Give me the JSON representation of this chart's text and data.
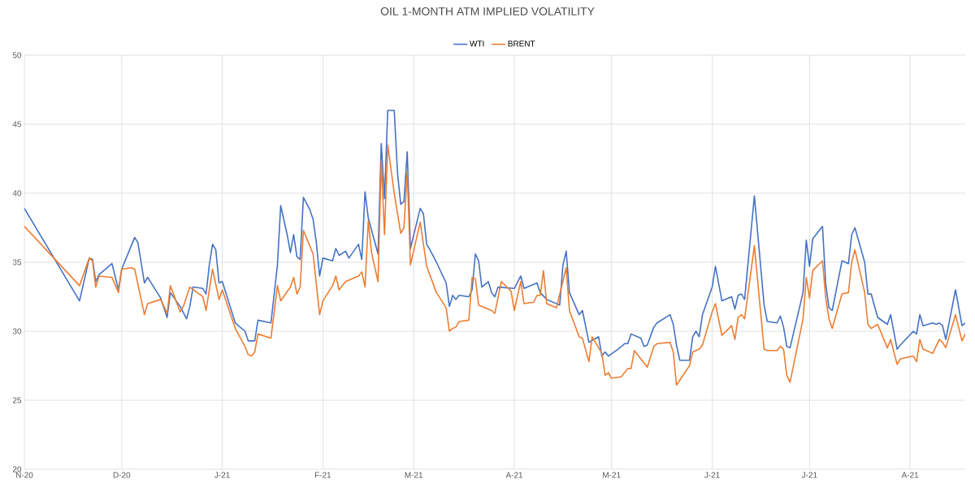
{
  "chart_data": {
    "type": "line",
    "title": "OIL 1-MONTH ATM IMPLIED VOLATILITY",
    "xlim": [
      "2020-11-01",
      "2021-08-18"
    ],
    "ylim": [
      20,
      50
    ],
    "yticks": [
      20,
      25,
      30,
      35,
      40,
      45,
      50
    ],
    "xticks": [
      {
        "value": "2020-11-01",
        "label": "N-20"
      },
      {
        "value": "2020-12-01",
        "label": "D-20"
      },
      {
        "value": "2021-01-01",
        "label": "J-21"
      },
      {
        "value": "2021-02-01",
        "label": "F-21"
      },
      {
        "value": "2021-03-01",
        "label": "M-21"
      },
      {
        "value": "2021-04-01",
        "label": "A-21"
      },
      {
        "value": "2021-05-01",
        "label": "M-21"
      },
      {
        "value": "2021-06-01",
        "label": "J-21"
      },
      {
        "value": "2021-07-01",
        "label": "J-21"
      },
      {
        "value": "2021-08-01",
        "label": "A-21"
      }
    ],
    "grid": true,
    "legend": "top",
    "marker": "none",
    "line_style": "solid",
    "series": [
      {
        "name": "WTI",
        "color": "#4472c4",
        "x": [
          "2020-11-01",
          "2020-11-18",
          "2020-11-21",
          "2020-11-22",
          "2020-11-23",
          "2020-11-24",
          "2020-11-28",
          "2020-11-30",
          "2020-12-01",
          "2020-12-05",
          "2020-12-06",
          "2020-12-08",
          "2020-12-09",
          "2020-12-13",
          "2020-12-15",
          "2020-12-16",
          "2020-12-19",
          "2020-12-21",
          "2020-12-22",
          "2020-12-23",
          "2020-12-26",
          "2020-12-27",
          "2020-12-28",
          "2020-12-29",
          "2020-12-30",
          "2020-12-31",
          "2021-01-01",
          "2021-01-05",
          "2021-01-08",
          "2021-01-09",
          "2021-01-11",
          "2021-01-12",
          "2021-01-16",
          "2021-01-18",
          "2021-01-19",
          "2021-01-21",
          "2021-01-22",
          "2021-01-23",
          "2021-01-24",
          "2021-01-25",
          "2021-01-26",
          "2021-01-28",
          "2021-01-29",
          "2021-01-30",
          "2021-01-31",
          "2021-02-01",
          "2021-02-04",
          "2021-02-05",
          "2021-02-06",
          "2021-02-08",
          "2021-02-09",
          "2021-02-12",
          "2021-02-13",
          "2021-02-14",
          "2021-02-15",
          "2021-02-18",
          "2021-02-19",
          "2021-02-20",
          "2021-02-21",
          "2021-02-23",
          "2021-02-24",
          "2021-02-25",
          "2021-02-26",
          "2021-02-27",
          "2021-02-28",
          "2021-03-03",
          "2021-03-04",
          "2021-03-05",
          "2021-03-06",
          "2021-03-08",
          "2021-03-11",
          "2021-03-12",
          "2021-03-13",
          "2021-03-14",
          "2021-03-15",
          "2021-03-18",
          "2021-03-19",
          "2021-03-20",
          "2021-03-21",
          "2021-03-22",
          "2021-03-24",
          "2021-03-25",
          "2021-03-26",
          "2021-03-27",
          "2021-04-01",
          "2021-04-03",
          "2021-04-04",
          "2021-04-08",
          "2021-04-09",
          "2021-04-11",
          "2021-04-15",
          "2021-04-16",
          "2021-04-17",
          "2021-04-18",
          "2021-04-21",
          "2021-04-22",
          "2021-04-24",
          "2021-04-27",
          "2021-04-28",
          "2021-04-29",
          "2021-04-30",
          "2021-05-03",
          "2021-05-05",
          "2021-05-06",
          "2021-05-07",
          "2021-05-10",
          "2021-05-11",
          "2021-05-12",
          "2021-05-14",
          "2021-05-15",
          "2021-05-19",
          "2021-05-20",
          "2021-05-21",
          "2021-05-22",
          "2021-05-25",
          "2021-05-26",
          "2021-05-27",
          "2021-05-28",
          "2021-05-29",
          "2021-06-01",
          "2021-06-02",
          "2021-06-04",
          "2021-06-07",
          "2021-06-08",
          "2021-06-09",
          "2021-06-10",
          "2021-06-11",
          "2021-06-14",
          "2021-06-17",
          "2021-06-18",
          "2021-06-21",
          "2021-06-22",
          "2021-06-23",
          "2021-06-24",
          "2021-06-25",
          "2021-06-29",
          "2021-06-30",
          "2021-07-01",
          "2021-07-02",
          "2021-07-05",
          "2021-07-06",
          "2021-07-07",
          "2021-07-08",
          "2021-07-11",
          "2021-07-13",
          "2021-07-14",
          "2021-07-15",
          "2021-07-18",
          "2021-07-19",
          "2021-07-20",
          "2021-07-22",
          "2021-07-25",
          "2021-07-26",
          "2021-07-28",
          "2021-07-29",
          "2021-08-02",
          "2021-08-03",
          "2021-08-04",
          "2021-08-05",
          "2021-08-08",
          "2021-08-09",
          "2021-08-10",
          "2021-08-11",
          "2021-08-12",
          "2021-08-15",
          "2021-08-17",
          "2021-08-18"
        ],
        "values": [
          38.9,
          32.2,
          35.3,
          35.2,
          33.6,
          34.1,
          34.9,
          33.0,
          34.5,
          36.8,
          36.4,
          33.5,
          33.9,
          32.4,
          31.0,
          32.8,
          31.8,
          30.9,
          31.8,
          33.2,
          33.1,
          32.7,
          34.8,
          36.3,
          35.9,
          33.5,
          33.6,
          30.6,
          30.0,
          29.3,
          29.3,
          30.8,
          30.6,
          34.8,
          39.1,
          37.0,
          35.7,
          37.0,
          35.4,
          35.2,
          39.7,
          38.8,
          38.1,
          36.4,
          34.0,
          35.3,
          35.1,
          36.0,
          35.5,
          35.8,
          35.3,
          36.3,
          35.2,
          40.1,
          38.2,
          35.6,
          43.6,
          39.6,
          46.0,
          46.0,
          41.5,
          39.2,
          39.4,
          43.0,
          36.0,
          38.9,
          38.5,
          36.3,
          35.9,
          35.0,
          33.5,
          31.8,
          32.6,
          32.3,
          32.6,
          32.5,
          33.0,
          35.6,
          35.1,
          33.2,
          33.6,
          32.8,
          32.5,
          33.2,
          33.1,
          34.0,
          33.1,
          33.5,
          32.8,
          32.3,
          31.9,
          34.8,
          35.8,
          32.8,
          31.2,
          31.5,
          29.2,
          29.6,
          28.2,
          28.5,
          28.2,
          28.7,
          29.1,
          29.1,
          29.8,
          29.5,
          28.9,
          29.0,
          30.3,
          30.6,
          31.2,
          30.5,
          29.0,
          27.9,
          27.9,
          29.6,
          30.0,
          29.6,
          31.2,
          33.2,
          34.7,
          32.2,
          32.5,
          31.6,
          32.6,
          32.7,
          32.3,
          39.8,
          31.9,
          30.7,
          30.6,
          31.1,
          30.3,
          28.9,
          28.8,
          32.8,
          36.6,
          34.7,
          36.7,
          37.6,
          33.4,
          31.7,
          31.5,
          35.1,
          34.9,
          37.0,
          37.5,
          35.0,
          32.7,
          32.7,
          31.0,
          30.5,
          31.2,
          28.7,
          29.0,
          30.0,
          29.8,
          31.2,
          30.4,
          30.6,
          30.5,
          30.6,
          30.4,
          29.4,
          33.0,
          30.4,
          30.6
        ]
      },
      {
        "name": "BRENT",
        "color": "#ed7d31",
        "x": [
          "2020-11-01",
          "2020-11-18",
          "2020-11-21",
          "2020-11-22",
          "2020-11-23",
          "2020-11-24",
          "2020-11-28",
          "2020-11-30",
          "2020-12-01",
          "2020-12-04",
          "2020-12-05",
          "2020-12-08",
          "2020-12-09",
          "2020-12-13",
          "2020-12-14",
          "2020-12-15",
          "2020-12-16",
          "2020-12-19",
          "2020-12-20",
          "2020-12-22",
          "2020-12-26",
          "2020-12-27",
          "2020-12-29",
          "2020-12-31",
          "2021-01-01",
          "2021-01-05",
          "2021-01-08",
          "2021-01-09",
          "2021-01-10",
          "2021-01-11",
          "2021-01-12",
          "2021-01-16",
          "2021-01-18",
          "2021-01-19",
          "2021-01-22",
          "2021-01-23",
          "2021-01-24",
          "2021-01-25",
          "2021-01-26",
          "2021-01-29",
          "2021-01-31",
          "2021-02-01",
          "2021-02-04",
          "2021-02-05",
          "2021-02-06",
          "2021-02-08",
          "2021-02-12",
          "2021-02-13",
          "2021-02-14",
          "2021-02-15",
          "2021-02-16",
          "2021-02-18",
          "2021-02-19",
          "2021-02-20",
          "2021-02-21",
          "2021-02-23",
          "2021-02-25",
          "2021-02-26",
          "2021-02-27",
          "2021-02-28",
          "2021-03-03",
          "2021-03-05",
          "2021-03-08",
          "2021-03-11",
          "2021-03-12",
          "2021-03-13",
          "2021-03-14",
          "2021-03-15",
          "2021-03-18",
          "2021-03-19",
          "2021-03-20",
          "2021-03-21",
          "2021-03-25",
          "2021-03-26",
          "2021-03-28",
          "2021-03-31",
          "2021-04-01",
          "2021-04-03",
          "2021-04-04",
          "2021-04-07",
          "2021-04-08",
          "2021-04-09",
          "2021-04-10",
          "2021-04-11",
          "2021-04-14",
          "2021-04-17",
          "2021-04-18",
          "2021-04-21",
          "2021-04-22",
          "2021-04-24",
          "2021-04-25",
          "2021-04-28",
          "2021-04-29",
          "2021-04-30",
          "2021-05-01",
          "2021-05-04",
          "2021-05-06",
          "2021-05-07",
          "2021-05-08",
          "2021-05-12",
          "2021-05-14",
          "2021-05-15",
          "2021-05-19",
          "2021-05-20",
          "2021-05-21",
          "2021-05-25",
          "2021-05-26",
          "2021-05-28",
          "2021-05-29",
          "2021-06-01",
          "2021-06-02",
          "2021-06-04",
          "2021-06-07",
          "2021-06-08",
          "2021-06-09",
          "2021-06-10",
          "2021-06-11",
          "2021-06-14",
          "2021-06-17",
          "2021-06-18",
          "2021-06-21",
          "2021-06-22",
          "2021-06-23",
          "2021-06-24",
          "2021-06-25",
          "2021-06-29",
          "2021-06-30",
          "2021-07-01",
          "2021-07-02",
          "2021-07-05",
          "2021-07-06",
          "2021-07-07",
          "2021-07-08",
          "2021-07-11",
          "2021-07-13",
          "2021-07-14",
          "2021-07-15",
          "2021-07-18",
          "2021-07-19",
          "2021-07-20",
          "2021-07-22",
          "2021-07-25",
          "2021-07-26",
          "2021-07-28",
          "2021-07-29",
          "2021-08-02",
          "2021-08-03",
          "2021-08-04",
          "2021-08-05",
          "2021-08-08",
          "2021-08-09",
          "2021-08-10",
          "2021-08-11",
          "2021-08-12",
          "2021-08-15",
          "2021-08-17",
          "2021-08-18"
        ],
        "values": [
          37.6,
          33.3,
          35.3,
          35.1,
          33.2,
          34.0,
          33.9,
          32.8,
          34.5,
          34.6,
          34.5,
          31.2,
          32.0,
          32.3,
          31.8,
          31.3,
          33.3,
          31.4,
          31.8,
          33.2,
          32.5,
          31.5,
          34.5,
          32.3,
          33.0,
          30.2,
          28.9,
          28.3,
          28.2,
          28.5,
          29.8,
          29.5,
          33.3,
          32.2,
          33.2,
          33.9,
          32.7,
          33.2,
          37.3,
          35.6,
          31.2,
          32.2,
          33.3,
          34.0,
          33.0,
          33.6,
          34.0,
          34.3,
          33.2,
          38.0,
          35.7,
          33.6,
          42.3,
          37.0,
          43.5,
          40.0,
          37.1,
          37.5,
          41.6,
          34.8,
          37.9,
          34.7,
          32.8,
          31.7,
          30.0,
          30.2,
          30.3,
          30.7,
          30.8,
          33.9,
          33.8,
          31.9,
          31.5,
          31.3,
          33.6,
          32.9,
          31.5,
          33.6,
          32.0,
          32.1,
          32.6,
          32.6,
          34.4,
          32.0,
          31.7,
          34.6,
          31.5,
          29.6,
          29.5,
          27.8,
          29.6,
          28.4,
          26.8,
          27.0,
          26.6,
          26.7,
          27.3,
          27.3,
          28.6,
          27.4,
          28.9,
          29.1,
          29.2,
          28.5,
          26.1,
          27.5,
          28.5,
          28.7,
          29.0,
          31.4,
          32.0,
          29.7,
          30.4,
          29.4,
          31.0,
          31.2,
          30.9,
          36.2,
          28.7,
          28.6,
          28.6,
          28.9,
          28.7,
          26.8,
          26.3,
          30.9,
          33.9,
          32.4,
          34.4,
          35.1,
          32.4,
          30.9,
          30.2,
          32.7,
          32.8,
          35.0,
          35.9,
          32.8,
          30.5,
          30.2,
          30.5,
          28.8,
          29.4,
          27.6,
          28.0,
          28.2,
          27.8,
          29.4,
          28.7,
          28.4,
          28.9,
          29.4,
          29.2,
          28.8,
          31.2,
          29.3,
          29.8
        ]
      }
    ]
  }
}
